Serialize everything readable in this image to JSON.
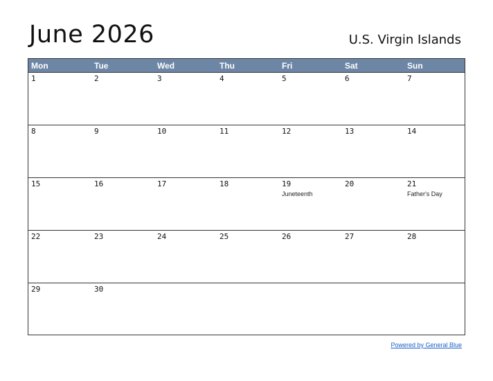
{
  "title": "June 2026",
  "region": "U.S. Virgin Islands",
  "weekdays": [
    "Mon",
    "Tue",
    "Wed",
    "Thu",
    "Fri",
    "Sat",
    "Sun"
  ],
  "weeks": [
    [
      {
        "day": "1",
        "event": ""
      },
      {
        "day": "2",
        "event": ""
      },
      {
        "day": "3",
        "event": ""
      },
      {
        "day": "4",
        "event": ""
      },
      {
        "day": "5",
        "event": ""
      },
      {
        "day": "6",
        "event": ""
      },
      {
        "day": "7",
        "event": ""
      }
    ],
    [
      {
        "day": "8",
        "event": ""
      },
      {
        "day": "9",
        "event": ""
      },
      {
        "day": "10",
        "event": ""
      },
      {
        "day": "11",
        "event": ""
      },
      {
        "day": "12",
        "event": ""
      },
      {
        "day": "13",
        "event": ""
      },
      {
        "day": "14",
        "event": ""
      }
    ],
    [
      {
        "day": "15",
        "event": ""
      },
      {
        "day": "16",
        "event": ""
      },
      {
        "day": "17",
        "event": ""
      },
      {
        "day": "18",
        "event": ""
      },
      {
        "day": "19",
        "event": "Juneteenth"
      },
      {
        "day": "20",
        "event": ""
      },
      {
        "day": "21",
        "event": "Father's Day"
      }
    ],
    [
      {
        "day": "22",
        "event": ""
      },
      {
        "day": "23",
        "event": ""
      },
      {
        "day": "24",
        "event": ""
      },
      {
        "day": "25",
        "event": ""
      },
      {
        "day": "26",
        "event": ""
      },
      {
        "day": "27",
        "event": ""
      },
      {
        "day": "28",
        "event": ""
      }
    ],
    [
      {
        "day": "29",
        "event": ""
      },
      {
        "day": "30",
        "event": ""
      },
      {
        "day": "",
        "event": ""
      },
      {
        "day": "",
        "event": ""
      },
      {
        "day": "",
        "event": ""
      },
      {
        "day": "",
        "event": ""
      },
      {
        "day": "",
        "event": ""
      }
    ]
  ],
  "footer": "Powered by General Blue",
  "colors": {
    "header_bg": "#6d86a6",
    "link": "#1a5fc8"
  }
}
